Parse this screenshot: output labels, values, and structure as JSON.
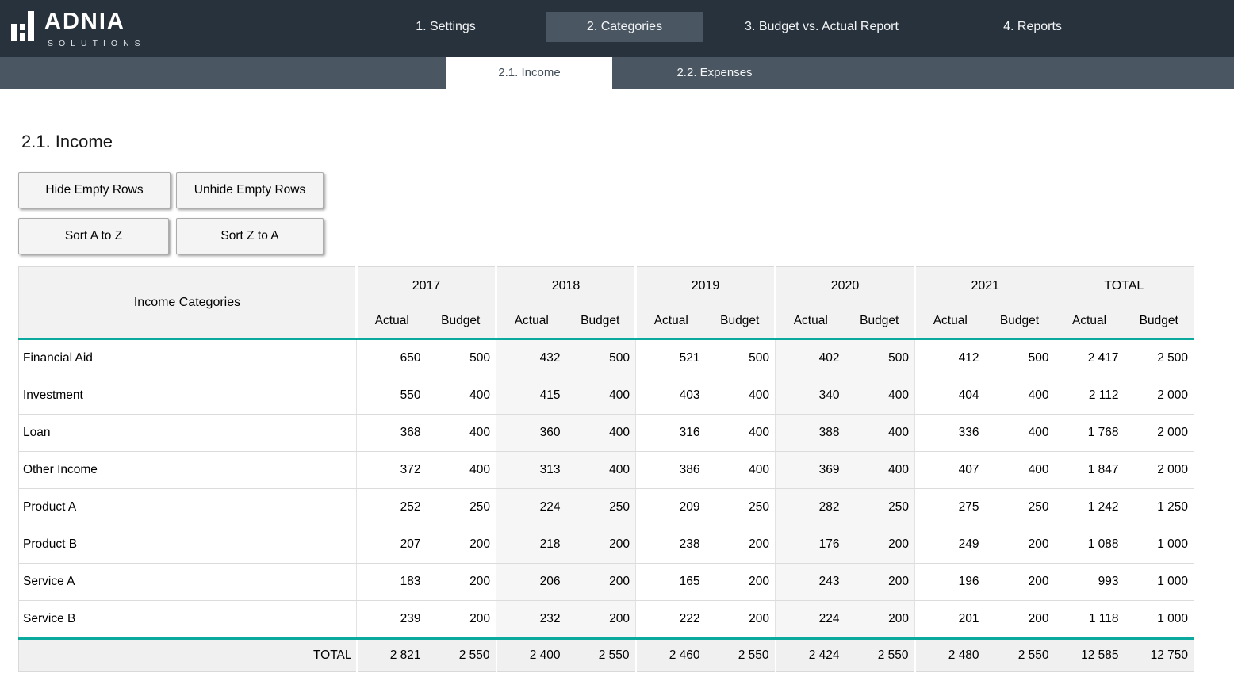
{
  "brand": {
    "name": "ADNIA",
    "subtitle": "SOLUTIONS"
  },
  "nav": {
    "items": [
      {
        "label": "1. Settings",
        "active": false
      },
      {
        "label": "2. Categories",
        "active": true
      },
      {
        "label": "3. Budget vs. Actual Report",
        "active": false
      },
      {
        "label": "4. Reports",
        "active": false
      }
    ]
  },
  "subnav": {
    "tabs": [
      {
        "label": "2.1. Income",
        "active": true
      },
      {
        "label": "2.2. Expenses",
        "active": false
      }
    ]
  },
  "page": {
    "title": "2.1. Income"
  },
  "buttons": {
    "hide_empty": "Hide Empty Rows",
    "unhide_empty": "Unhide Empty Rows",
    "sort_az": "Sort A to Z",
    "sort_za": "Sort Z to A"
  },
  "table": {
    "first_col_header": "Income Categories",
    "sub_headers": [
      "Actual",
      "Budget"
    ],
    "groups": [
      {
        "label": "2017",
        "tinted": false,
        "separator": true
      },
      {
        "label": "2018",
        "tinted": true,
        "separator": true
      },
      {
        "label": "2019",
        "tinted": false,
        "separator": true
      },
      {
        "label": "2020",
        "tinted": true,
        "separator": true
      },
      {
        "label": "2021",
        "tinted": false,
        "separator": true
      },
      {
        "label": "TOTAL",
        "tinted": false,
        "separator": false
      }
    ],
    "rows": [
      {
        "name": "Financial Aid",
        "values": [
          "650",
          "500",
          "432",
          "500",
          "521",
          "500",
          "402",
          "500",
          "412",
          "500",
          "2 417",
          "2 500"
        ]
      },
      {
        "name": "Investment",
        "values": [
          "550",
          "400",
          "415",
          "400",
          "403",
          "400",
          "340",
          "400",
          "404",
          "400",
          "2 112",
          "2 000"
        ]
      },
      {
        "name": "Loan",
        "values": [
          "368",
          "400",
          "360",
          "400",
          "316",
          "400",
          "388",
          "400",
          "336",
          "400",
          "1 768",
          "2 000"
        ]
      },
      {
        "name": "Other Income",
        "values": [
          "372",
          "400",
          "313",
          "400",
          "386",
          "400",
          "369",
          "400",
          "407",
          "400",
          "1 847",
          "2 000"
        ]
      },
      {
        "name": "Product A",
        "values": [
          "252",
          "250",
          "224",
          "250",
          "209",
          "250",
          "282",
          "250",
          "275",
          "250",
          "1 242",
          "1 250"
        ]
      },
      {
        "name": "Product B",
        "values": [
          "207",
          "200",
          "218",
          "200",
          "238",
          "200",
          "176",
          "200",
          "249",
          "200",
          "1 088",
          "1 000"
        ]
      },
      {
        "name": "Service A",
        "values": [
          "183",
          "200",
          "206",
          "200",
          "165",
          "200",
          "243",
          "200",
          "196",
          "200",
          "993",
          "1 000"
        ]
      },
      {
        "name": "Service B",
        "values": [
          "239",
          "200",
          "232",
          "200",
          "222",
          "200",
          "224",
          "200",
          "201",
          "200",
          "1 118",
          "1 000"
        ]
      }
    ],
    "total_row": {
      "label": "TOTAL",
      "values": [
        "2 821",
        "2 550",
        "2 400",
        "2 550",
        "2 460",
        "2 550",
        "2 424",
        "2 550",
        "2 480",
        "2 550",
        "12 585",
        "12 750"
      ]
    }
  },
  "colors": {
    "navbar_bg": "#28323c",
    "active_nav_tab_bg": "#4a5762",
    "subbar_bg": "#4a5762",
    "accent_teal": "#0caa9e",
    "table_header_bg": "#f2f2f2",
    "tinted_group_bg": "#f6f6f6",
    "total_row_bg": "#f0f0f0",
    "grid_line": "#dcdcdc"
  }
}
